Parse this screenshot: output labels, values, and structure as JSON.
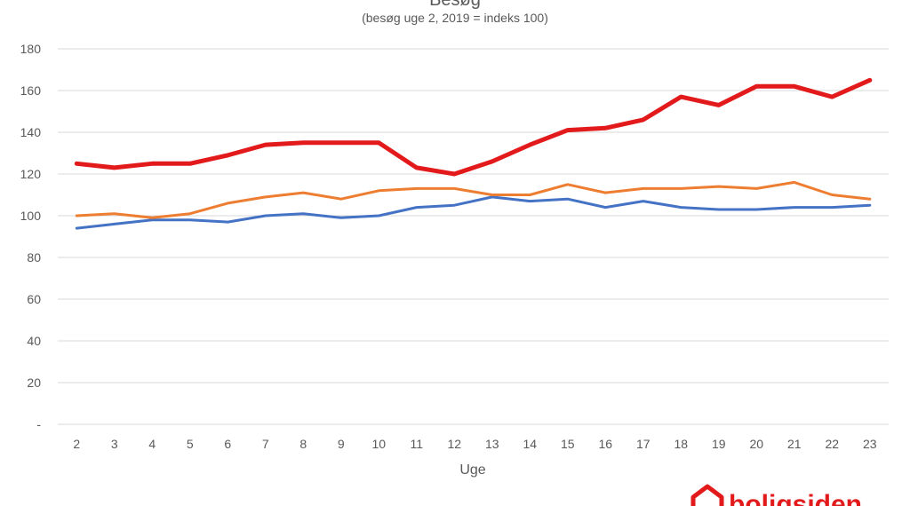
{
  "chart_data": {
    "type": "line",
    "title": "Besøg",
    "subtitle": "(besøg uge 2, 2019 = indeks 100)",
    "xlabel": "Uge",
    "ylabel": "",
    "x": [
      2,
      3,
      4,
      5,
      6,
      7,
      8,
      9,
      10,
      11,
      12,
      13,
      14,
      15,
      16,
      17,
      18,
      19,
      20,
      21,
      22,
      23
    ],
    "ylim": [
      0,
      180
    ],
    "yticks": [
      0,
      20,
      40,
      60,
      80,
      100,
      120,
      140,
      160,
      180
    ],
    "ytick_labels": [
      "-",
      "20",
      "40",
      "60",
      "80",
      "100",
      "120",
      "140",
      "160",
      "180"
    ],
    "grid": true,
    "legend": "none",
    "series": [
      {
        "color": "#e31a1c",
        "values": [
          125,
          123,
          125,
          125,
          129,
          134,
          135,
          135,
          135,
          123,
          120,
          126,
          134,
          141,
          142,
          146,
          157,
          153,
          162,
          162,
          157,
          165
        ]
      },
      {
        "color": "#ed7d31",
        "values": [
          100,
          101,
          99,
          101,
          106,
          109,
          111,
          108,
          112,
          113,
          113,
          110,
          110,
          115,
          111,
          113,
          113,
          114,
          113,
          116,
          110,
          108
        ]
      },
      {
        "color": "#4472c4",
        "values": [
          94,
          96,
          98,
          98,
          97,
          100,
          101,
          99,
          100,
          104,
          105,
          109,
          107,
          108,
          104,
          107,
          104,
          103,
          103,
          104,
          104,
          105
        ]
      }
    ]
  },
  "logo": {
    "text": "boligsiden",
    "color": "#e31a1c",
    "icon": "house-icon"
  }
}
